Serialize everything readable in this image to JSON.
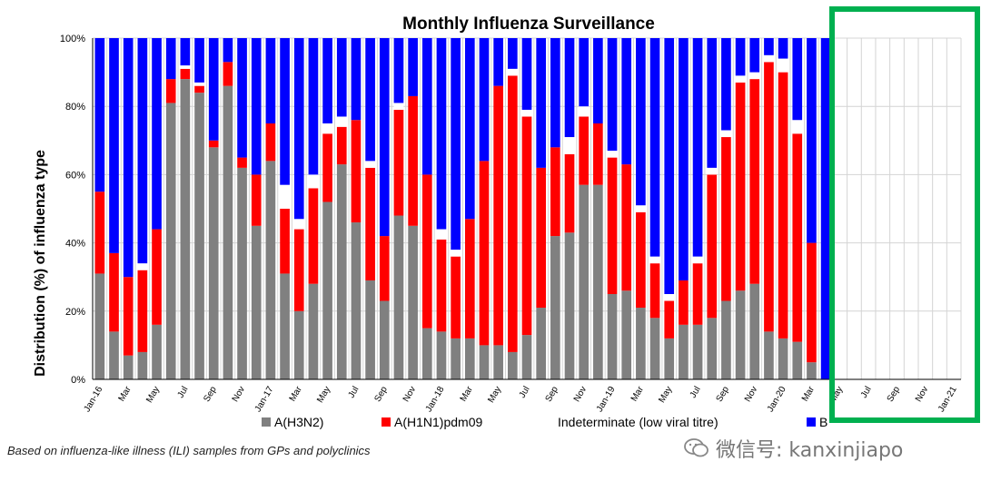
{
  "chart_data": {
    "type": "bar",
    "stacked": true,
    "title": "Monthly Influenza Surveillance",
    "xlabel": "",
    "ylabel": "Distribution (%) of influenza  type",
    "ylim": [
      0,
      100
    ],
    "yticks": [
      "0%",
      "20%",
      "40%",
      "60%",
      "80%",
      "100%"
    ],
    "grid": "vertical and horizontal gridlines",
    "legend_position": "bottom",
    "categories": [
      "Jan-16",
      "Feb-16",
      "Mar-16",
      "Apr-16",
      "May-16",
      "Jun-16",
      "Jul-16",
      "Aug-16",
      "Sep-16",
      "Oct-16",
      "Nov-16",
      "Dec-16",
      "Jan-17",
      "Feb-17",
      "Mar-17",
      "Apr-17",
      "May-17",
      "Jun-17",
      "Jul-17",
      "Aug-17",
      "Sep-17",
      "Oct-17",
      "Nov-17",
      "Dec-17",
      "Jan-18",
      "Feb-18",
      "Mar-18",
      "Apr-18",
      "May-18",
      "Jun-18",
      "Jul-18",
      "Aug-18",
      "Sep-18",
      "Oct-18",
      "Nov-18",
      "Dec-18",
      "Jan-19",
      "Feb-19",
      "Mar-19",
      "Apr-19",
      "May-19",
      "Jun-19",
      "Jul-19",
      "Aug-19",
      "Sep-19",
      "Oct-19",
      "Nov-19",
      "Dec-19",
      "Jan-20",
      "Feb-20",
      "Mar-20",
      "Apr-20",
      "May-20",
      "Jun-20",
      "Jul-20",
      "Aug-20",
      "Sep-20",
      "Oct-20",
      "Nov-20",
      "Dec-20",
      "Jan-21"
    ],
    "tick_labels": [
      "Jan-16",
      "",
      "Mar",
      "",
      "May",
      "",
      "Jul",
      "",
      "Sep",
      "",
      "Nov",
      "",
      "Jan-17",
      "",
      "Mar",
      "",
      "May",
      "",
      "Jul",
      "",
      "Sep",
      "",
      "Nov",
      "",
      "Jan-18",
      "",
      "Mar",
      "",
      "May",
      "",
      "Jul",
      "",
      "Sep",
      "",
      "Nov",
      "",
      "Jan-19",
      "",
      "Mar",
      "",
      "May",
      "",
      "Jul",
      "",
      "Sep",
      "",
      "Nov",
      "",
      "Jan-20",
      "",
      "Mar",
      "",
      "May",
      "",
      "Jul",
      "",
      "Sep",
      "",
      "Nov",
      "",
      "Jan-21"
    ],
    "series": [
      {
        "name": "A(H3N2)",
        "color": "#808080",
        "values": [
          31,
          14,
          7,
          8,
          16,
          81,
          88,
          84,
          68,
          86,
          62,
          45,
          64,
          31,
          20,
          28,
          52,
          63,
          46,
          29,
          23,
          48,
          45,
          15,
          14,
          12,
          12,
          10,
          10,
          8,
          13,
          21,
          42,
          43,
          57,
          57,
          25,
          26,
          21,
          18,
          12,
          16,
          16,
          18,
          23,
          26,
          28,
          14,
          12,
          11,
          5,
          0,
          0,
          0,
          0,
          0,
          0,
          0,
          0,
          0,
          0
        ]
      },
      {
        "name": "A(H1N1)pdm09",
        "color": "#ff0000",
        "values": [
          24,
          23,
          23,
          24,
          28,
          7,
          3,
          2,
          2,
          7,
          3,
          15,
          11,
          19,
          24,
          28,
          20,
          11,
          30,
          33,
          19,
          31,
          38,
          45,
          27,
          24,
          35,
          54,
          76,
          81,
          64,
          41,
          26,
          23,
          20,
          18,
          40,
          37,
          28,
          16,
          11,
          13,
          18,
          42,
          48,
          61,
          60,
          79,
          78,
          61,
          35,
          0,
          0,
          0,
          0,
          0,
          0,
          0,
          0,
          0,
          0
        ]
      },
      {
        "name": "Indeterminate (low viral titre)",
        "color": "#ffffff",
        "values": [
          0,
          0,
          0,
          2,
          0,
          0,
          1,
          1,
          0,
          0,
          0,
          0,
          0,
          7,
          3,
          4,
          3,
          3,
          0,
          2,
          0,
          2,
          0,
          0,
          3,
          2,
          0,
          0,
          0,
          2,
          2,
          0,
          0,
          5,
          3,
          0,
          2,
          0,
          2,
          2,
          2,
          0,
          2,
          2,
          2,
          2,
          2,
          2,
          4,
          4,
          0,
          0,
          0,
          0,
          0,
          0,
          0,
          0,
          0,
          0,
          0
        ]
      },
      {
        "name": "B",
        "color": "#0000ff",
        "values": [
          45,
          63,
          70,
          66,
          56,
          12,
          8,
          13,
          30,
          7,
          35,
          40,
          25,
          43,
          53,
          40,
          25,
          23,
          24,
          36,
          58,
          19,
          17,
          40,
          56,
          62,
          53,
          36,
          14,
          9,
          21,
          38,
          32,
          29,
          20,
          25,
          33,
          37,
          49,
          64,
          75,
          71,
          64,
          38,
          27,
          11,
          10,
          5,
          6,
          24,
          60,
          100,
          0,
          0,
          0,
          0,
          0,
          0,
          0,
          0,
          0
        ]
      }
    ]
  }
}
